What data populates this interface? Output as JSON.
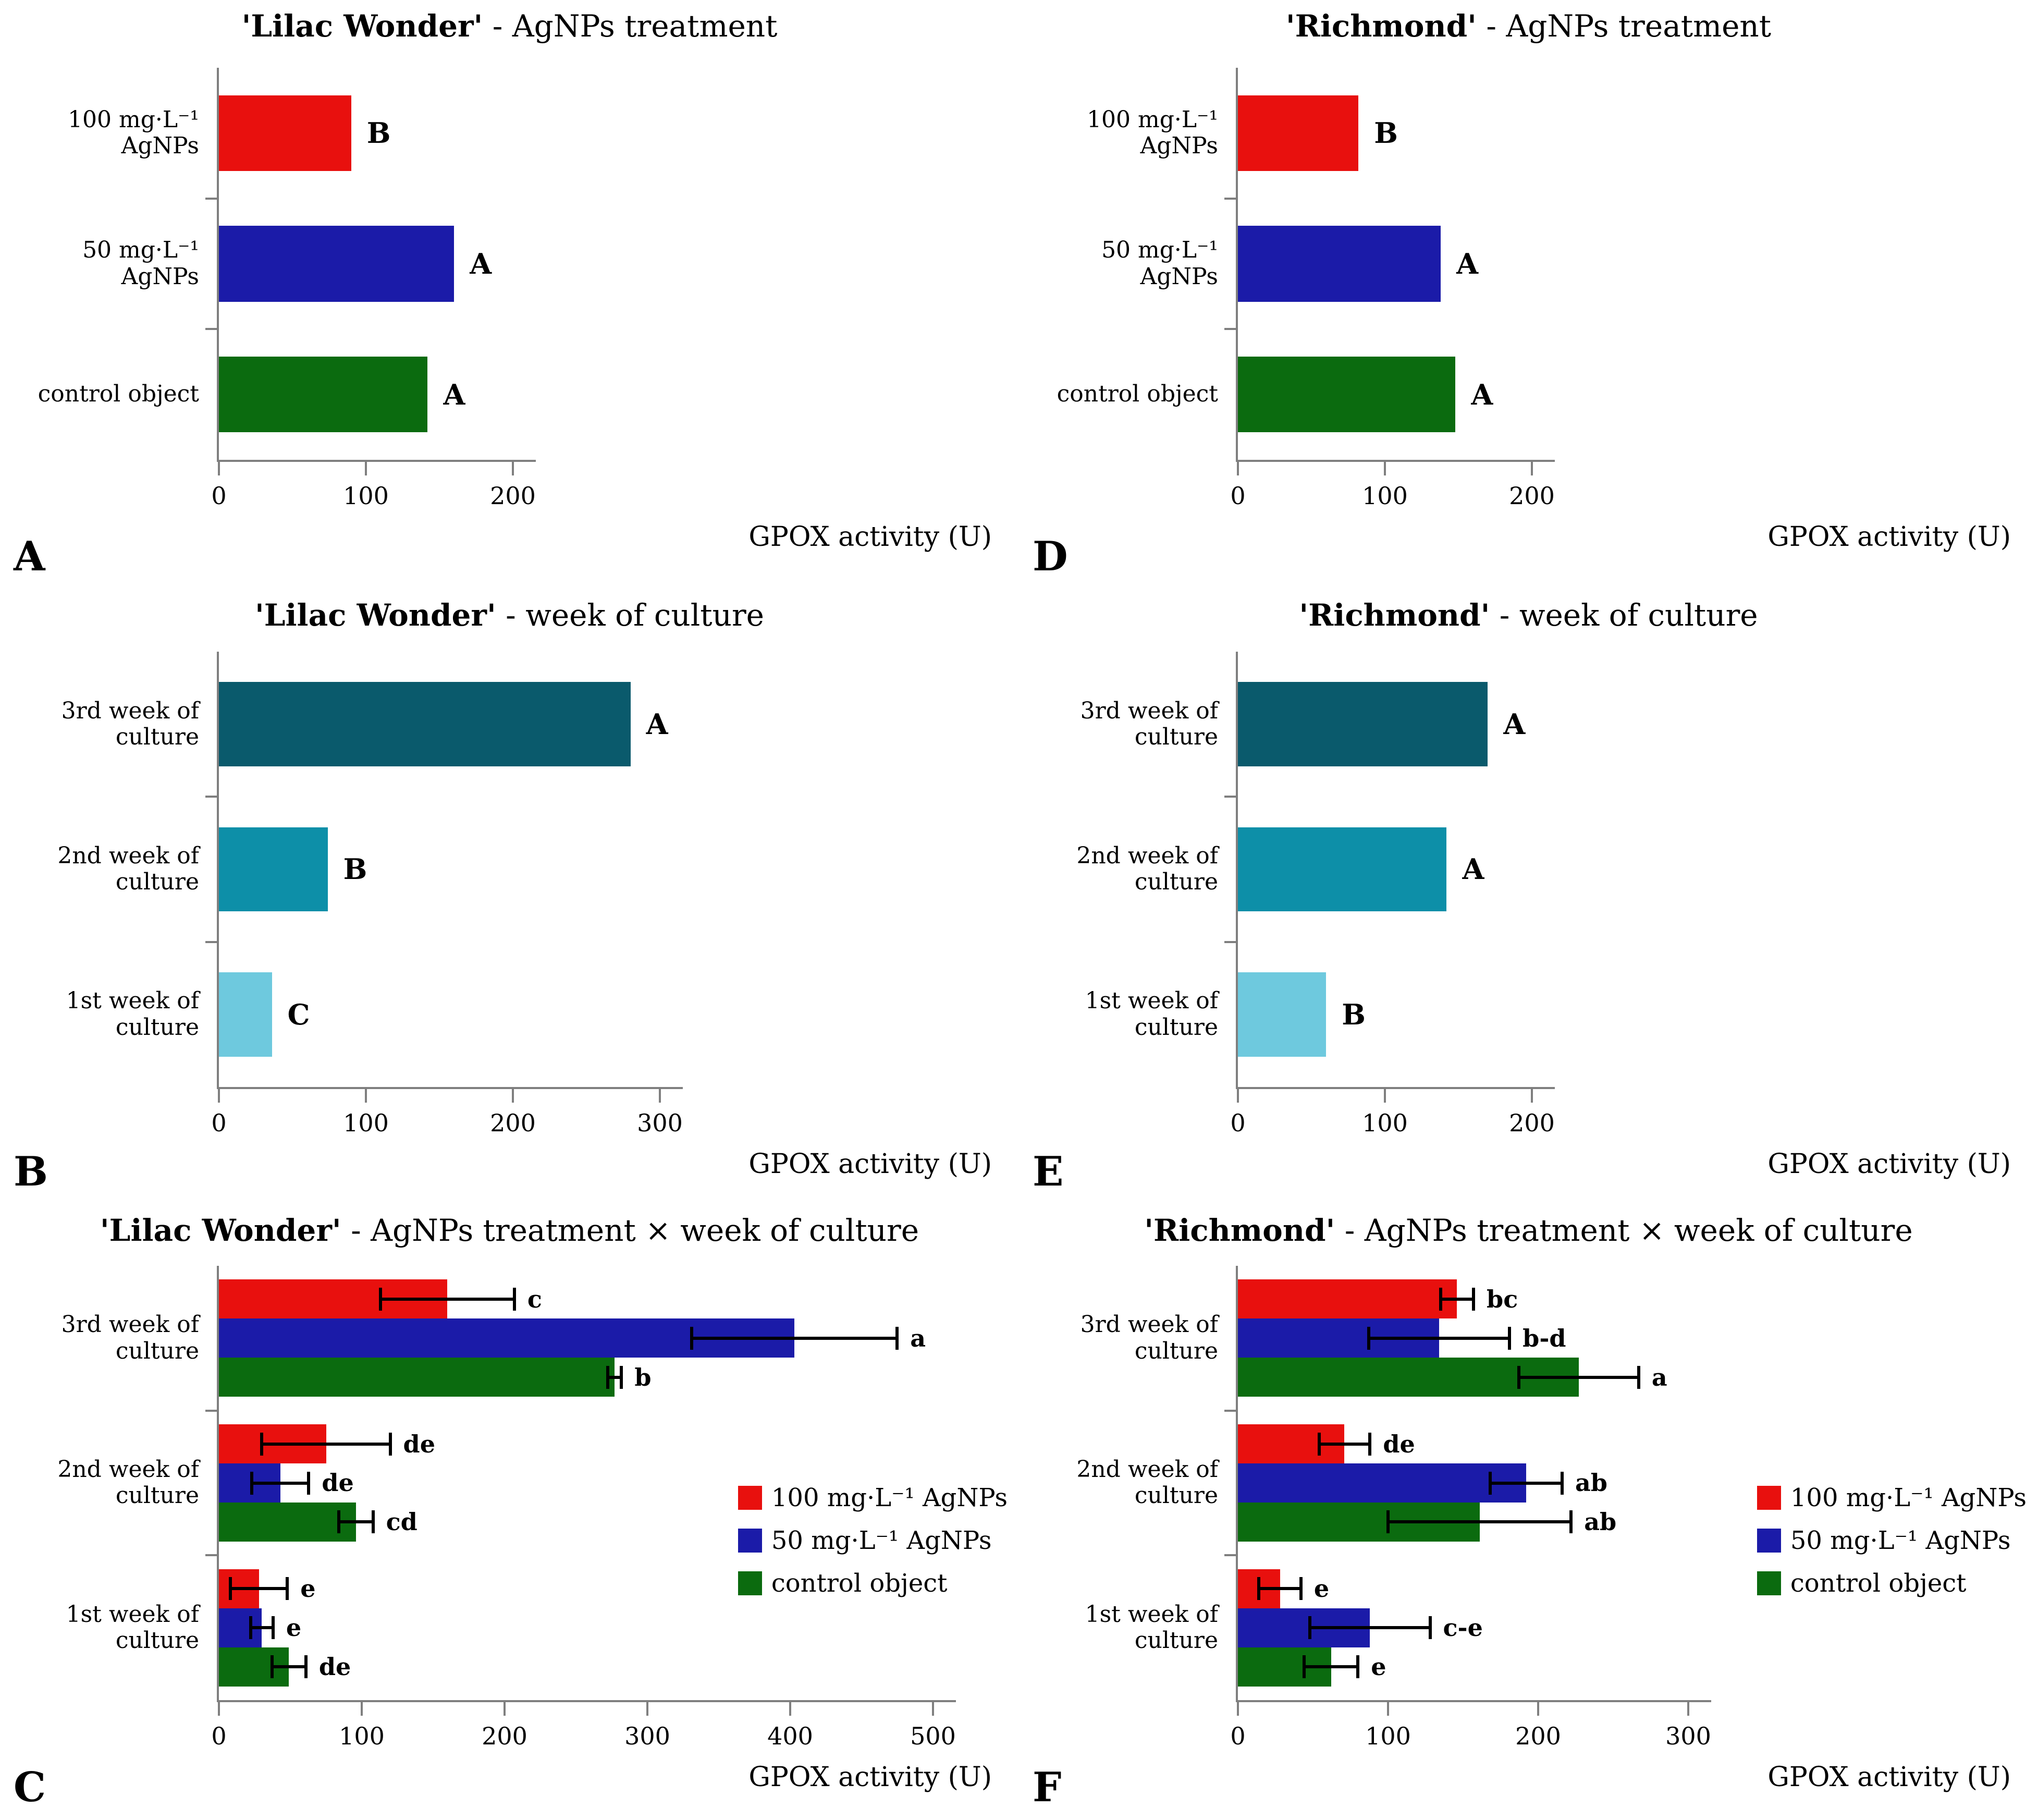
{
  "figure_title": "GPOX activity bar charts",
  "x_axis_title": "GPOX activity (U)",
  "colors": {
    "red": "#e8100e",
    "blue": "#1b1ba8",
    "green": "#0b6b0f",
    "teal_dark": "#0a5a6c",
    "teal_mid": "#0d8fa8",
    "teal_light": "#6ec9de",
    "axis_gray": "#7f7f7f",
    "error_bar": "#000000"
  },
  "chart_data": [
    {
      "id": "A",
      "panel_label": "A",
      "type": "bar",
      "grouped": false,
      "title_bold": "'Lilac Wonder'",
      "title_rest": " - AgNPs treatment",
      "xlabel": "GPOX activity (U)",
      "xlim": [
        0,
        200
      ],
      "ticks": [
        0,
        100,
        200
      ],
      "categories": [
        "100 mg·L⁻¹  AgNPs",
        "50 mg·L⁻¹  AgNPs",
        "control object"
      ],
      "values": [
        90,
        160,
        142
      ],
      "letters": [
        "B",
        "A",
        "A"
      ],
      "bar_colors": [
        "#e8100e",
        "#1b1ba8",
        "#0b6b0f"
      ]
    },
    {
      "id": "D",
      "panel_label": "D",
      "type": "bar",
      "grouped": false,
      "title_bold": "'Richmond'",
      "title_rest": " - AgNPs treatment",
      "xlabel": "GPOX activity (U)",
      "xlim": [
        0,
        200
      ],
      "ticks": [
        0,
        100,
        200
      ],
      "categories": [
        "100 mg·L⁻¹  AgNPs",
        "50 mg·L⁻¹  AgNPs",
        "control object"
      ],
      "values": [
        82,
        138,
        148
      ],
      "letters": [
        "B",
        "A",
        "A"
      ],
      "bar_colors": [
        "#e8100e",
        "#1b1ba8",
        "#0b6b0f"
      ]
    },
    {
      "id": "B",
      "panel_label": "B",
      "type": "bar",
      "grouped": false,
      "title_bold": "'Lilac Wonder'",
      "title_rest": " - week of culture",
      "xlabel": "GPOX activity (U)",
      "xlim": [
        0,
        300
      ],
      "ticks": [
        0,
        100,
        200,
        300
      ],
      "categories": [
        "3rd week of culture",
        "2nd week of culture",
        "1st week of culture"
      ],
      "values": [
        280,
        74,
        36
      ],
      "letters": [
        "A",
        "B",
        "C"
      ],
      "bar_colors": [
        "#0a5a6c",
        "#0d8fa8",
        "#6ec9de"
      ]
    },
    {
      "id": "E",
      "panel_label": "E",
      "type": "bar",
      "grouped": false,
      "title_bold": "'Richmond'",
      "title_rest": " - week of culture",
      "xlabel": "GPOX activity (U)",
      "xlim": [
        0,
        200
      ],
      "ticks": [
        0,
        100,
        200
      ],
      "categories": [
        "3rd week of culture",
        "2nd week of culture",
        "1st week of culture"
      ],
      "values": [
        170,
        142,
        60
      ],
      "letters": [
        "A",
        "A",
        "B"
      ],
      "bar_colors": [
        "#0a5a6c",
        "#0d8fa8",
        "#6ec9de"
      ]
    },
    {
      "id": "C",
      "panel_label": "C",
      "type": "bar",
      "grouped": true,
      "title_bold": "'Lilac Wonder'",
      "title_rest": " - AgNPs treatment × week of culture",
      "xlabel": "GPOX activity (U)",
      "xlim": [
        0,
        500
      ],
      "ticks": [
        0,
        100,
        200,
        300,
        400,
        500
      ],
      "series": [
        {
          "name": "100 mg·L⁻¹  AgNPs",
          "color": "#e8100e"
        },
        {
          "name": "50 mg·L⁻¹  AgNPs",
          "color": "#1b1ba8"
        },
        {
          "name": "control object",
          "color": "#0b6b0f"
        }
      ],
      "groups": [
        {
          "category": "3rd week of culture",
          "bars": [
            {
              "value": 160,
              "err": 48,
              "letter": "c"
            },
            {
              "value": 403,
              "err": 73,
              "letter": "a"
            },
            {
              "value": 277,
              "err": 6,
              "letter": "b"
            }
          ]
        },
        {
          "category": "2nd week of culture",
          "bars": [
            {
              "value": 75,
              "err": 46,
              "letter": "de"
            },
            {
              "value": 43,
              "err": 21,
              "letter": "de"
            },
            {
              "value": 96,
              "err": 13,
              "letter": "cd"
            }
          ]
        },
        {
          "category": "1st week of culture",
          "bars": [
            {
              "value": 28,
              "err": 21,
              "letter": "e"
            },
            {
              "value": 30,
              "err": 9,
              "letter": "e"
            },
            {
              "value": 49,
              "err": 13,
              "letter": "de"
            }
          ]
        }
      ],
      "legend": [
        "100 mg·L⁻¹  AgNPs",
        "50 mg·L⁻¹  AgNPs",
        "control object"
      ]
    },
    {
      "id": "F",
      "panel_label": "F",
      "type": "bar",
      "grouped": true,
      "title_bold": "'Richmond'",
      "title_rest": " - AgNPs treatment × week of culture",
      "xlabel": "GPOX activity (U)",
      "xlim": [
        0,
        300
      ],
      "ticks": [
        0,
        100,
        200,
        300
      ],
      "series": [
        {
          "name": "100 mg·L⁻¹  AgNPs",
          "color": "#e8100e"
        },
        {
          "name": "50 mg·L⁻¹  AgNPs",
          "color": "#1b1ba8"
        },
        {
          "name": "control object",
          "color": "#0b6b0f"
        }
      ],
      "groups": [
        {
          "category": "3rd week of culture",
          "bars": [
            {
              "value": 146,
              "err": 12,
              "letter": "bc"
            },
            {
              "value": 134,
              "err": 48,
              "letter": "b-d"
            },
            {
              "value": 227,
              "err": 41,
              "letter": "a"
            }
          ]
        },
        {
          "category": "2nd week of culture",
          "bars": [
            {
              "value": 71,
              "err": 18,
              "letter": "de"
            },
            {
              "value": 192,
              "err": 25,
              "letter": "ab"
            },
            {
              "value": 161,
              "err": 62,
              "letter": "ab"
            }
          ]
        },
        {
          "category": "1st week of culture",
          "bars": [
            {
              "value": 28,
              "err": 15,
              "letter": "e"
            },
            {
              "value": 88,
              "err": 41,
              "letter": "c-e"
            },
            {
              "value": 62,
              "err": 19,
              "letter": "e"
            }
          ]
        }
      ],
      "legend": [
        "100 mg·L⁻¹  AgNPs",
        "50 mg·L⁻¹  AgNPs",
        "control object"
      ]
    }
  ]
}
